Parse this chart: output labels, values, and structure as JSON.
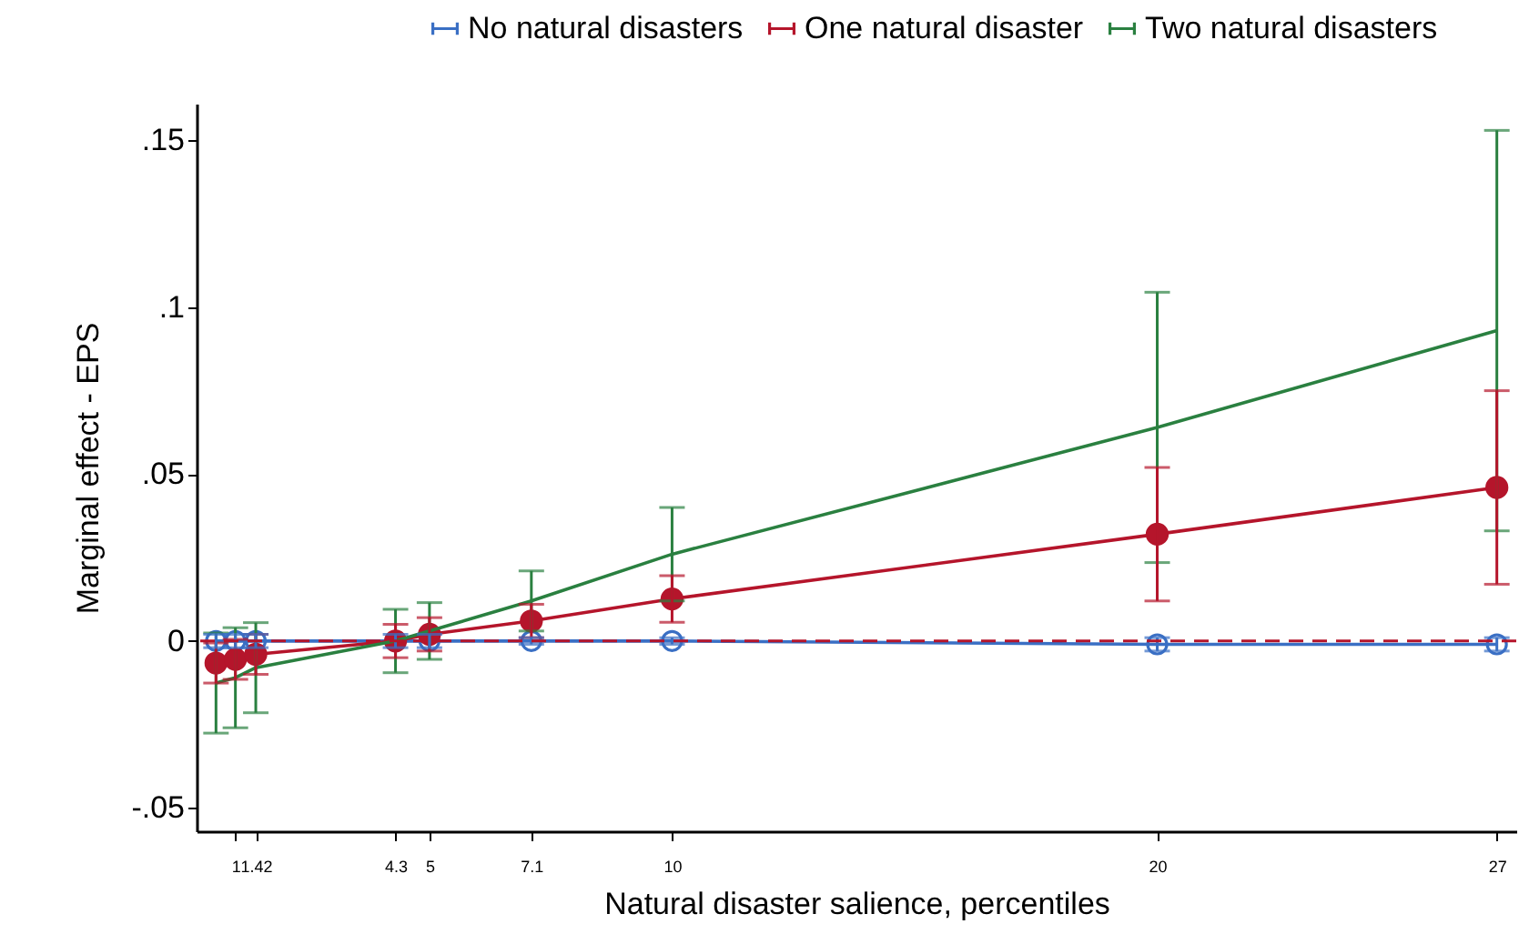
{
  "chart_data": {
    "type": "line",
    "xlabel": "Natural disaster salience, percentiles",
    "ylabel": "Marginal effect - EPS",
    "x": [
      0.6,
      1,
      1.42,
      4.3,
      5,
      7.1,
      10,
      20,
      27
    ],
    "xlim": [
      0.2,
      27.4
    ],
    "xticks": [
      1,
      1.42,
      4.3,
      5,
      7.1,
      10,
      20,
      27
    ],
    "ylim": [
      -0.057,
      0.161
    ],
    "yticks": [
      {
        "value": -0.05,
        "label": "-.05"
      },
      {
        "value": 0,
        "label": "0"
      },
      {
        "value": 0.05,
        "label": ".05"
      },
      {
        "value": 0.1,
        "label": ".1"
      },
      {
        "value": 0.15,
        "label": ".15"
      }
    ],
    "grid": false,
    "legend": "top",
    "ref_lines": [
      {
        "axis": "y",
        "value": 0,
        "color": "#b5152b",
        "line_style": "dashed"
      }
    ],
    "series": [
      {
        "name": "No natural disasters",
        "color": "#3a6fc4",
        "marker": "circle",
        "values": [
          0,
          0,
          0,
          0,
          0,
          0,
          0,
          -0.001,
          -0.001
        ],
        "errors": [
          0.002,
          0.002,
          0.002,
          0.002,
          0.002,
          0.001,
          0.001,
          0.002,
          0.002
        ]
      },
      {
        "name": "One natural disaster",
        "color": "#b5152b",
        "marker": "circle",
        "values": [
          -0.0066,
          -0.0055,
          -0.004,
          0,
          0.002,
          0.006,
          0.0126,
          0.032,
          0.046
        ],
        "errors": [
          0.006,
          0.006,
          0.006,
          0.005,
          0.005,
          0.005,
          0.007,
          0.02,
          0.029
        ]
      },
      {
        "name": "Two natural disasters",
        "color": "#2a8040",
        "marker": "none",
        "values": [
          -0.0126,
          -0.011,
          -0.008,
          0,
          0.003,
          0.012,
          0.026,
          0.064,
          0.093
        ],
        "errors": [
          0.015,
          0.015,
          0.0135,
          0.0095,
          0.0085,
          0.009,
          0.014,
          0.0405,
          0.06
        ]
      }
    ]
  }
}
